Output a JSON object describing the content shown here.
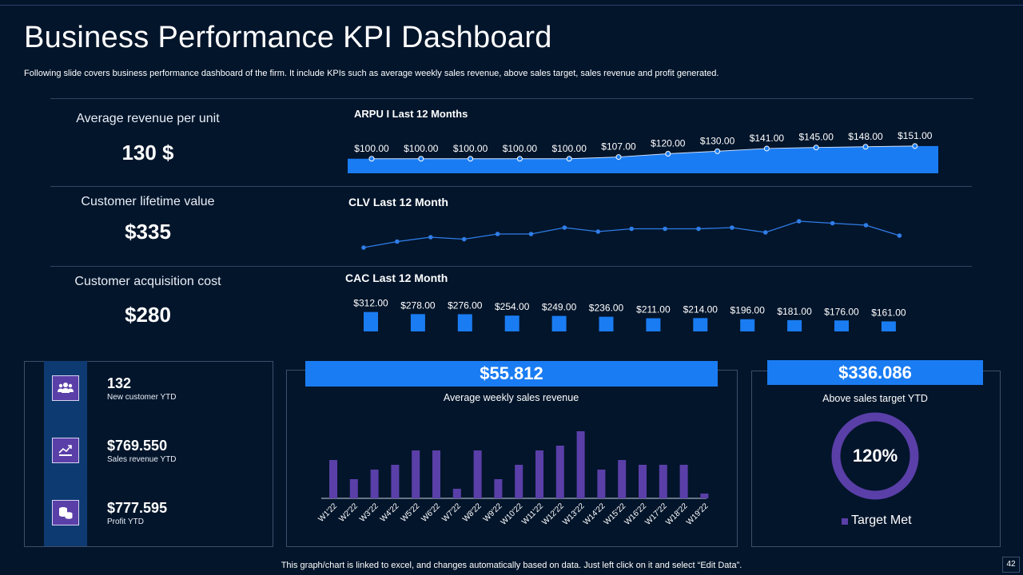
{
  "header": {
    "title": "Business Performance KPI Dashboard",
    "subtitle": "Following slide covers business performance dashboard of the firm. It include KPIs such as average weekly sales revenue, above sales target, sales revenue and profit generated."
  },
  "kpis": [
    {
      "label": "Average revenue per unit",
      "value": "130 $"
    },
    {
      "label": "Customer lifetime value",
      "value": "$335"
    },
    {
      "label": "Customer acquisition cost",
      "value": "$280"
    }
  ],
  "stats": [
    {
      "value": "132",
      "label": "New customer YTD",
      "icon": "users-icon"
    },
    {
      "value": "$769.550",
      "label": "Sales revenue YTD",
      "icon": "growth-chart-icon"
    },
    {
      "value": "$777.595",
      "label": "Profit YTD",
      "icon": "coins-icon"
    }
  ],
  "weekly_panel": {
    "value": "$55.812",
    "subtitle": "Average  weekly sales revenue"
  },
  "target_panel": {
    "value": "$336.086",
    "subtitle": "Above sales target YTD",
    "percent_label": "120%",
    "legend": "Target Met"
  },
  "footer": "This graph/chart is linked to excel,  and changes automatically based on data. Just left click on it and select “Edit Data”.",
  "page_number": "42",
  "colors": {
    "background": "#03152b",
    "accent_blue": "#1a7cf2",
    "purple": "#5a3fa8"
  },
  "chart_data": [
    {
      "id": "arpu",
      "type": "area",
      "title": "ARPU I Last 12 Months",
      "values": [
        100,
        100,
        100,
        100,
        100,
        107,
        120,
        130,
        141,
        145,
        148,
        151
      ],
      "labels": [
        "$100.00",
        "$100.00",
        "$100.00",
        "$100.00",
        "$100.00",
        "$107.00",
        "$120.00",
        "$130.00",
        "$141.00",
        "$145.00",
        "$148.00",
        "$151.00"
      ]
    },
    {
      "id": "clv",
      "type": "line",
      "title": "CLV Last 12 Month",
      "values": [
        290,
        305,
        316,
        311,
        324,
        324,
        340,
        330,
        337,
        337,
        337,
        340,
        328,
        356,
        351,
        346,
        320
      ]
    },
    {
      "id": "cac",
      "type": "bar",
      "title": "CAC Last 12 Month",
      "values": [
        312,
        278,
        276,
        254,
        249,
        236,
        211,
        214,
        196,
        181,
        176,
        161
      ],
      "labels": [
        "$312.00",
        "$278.00",
        "$276.00",
        "$254.00",
        "$249.00",
        "$236.00",
        "$211.00",
        "$214.00",
        "$196.00",
        "$181.00",
        "$176.00",
        "$161.00"
      ]
    },
    {
      "id": "weekly",
      "type": "bar",
      "title": "Average  weekly sales revenue",
      "categories": [
        "W1'22",
        "W2'22",
        "W3'22",
        "W4'22",
        "W5'22",
        "W6'22",
        "W7'22",
        "W8'22",
        "W9'22",
        "W10'22",
        "W11'22",
        "W12'22",
        "W13'22",
        "W14'22",
        "W15'22",
        "W16'22",
        "W17'22",
        "W18'22",
        "W19'22"
      ],
      "values": [
        8,
        4,
        6,
        7,
        10,
        10,
        2,
        10,
        4,
        7,
        10,
        11,
        14,
        6,
        8,
        7,
        7,
        7,
        1
      ]
    },
    {
      "id": "target",
      "type": "pie",
      "title": "Above sales target YTD",
      "values": [
        120
      ],
      "legend": [
        "Target Met"
      ]
    }
  ]
}
